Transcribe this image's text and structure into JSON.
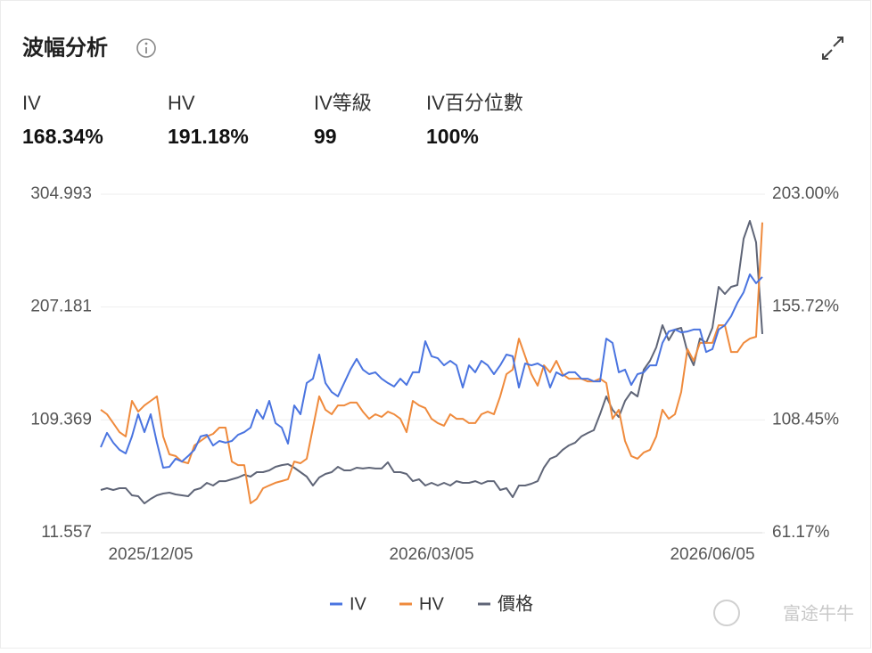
{
  "header": {
    "title": "波幅分析"
  },
  "stats": [
    {
      "label": "IV",
      "value": "168.34%"
    },
    {
      "label": "HV",
      "value": "191.18%"
    },
    {
      "label": "IV等級",
      "value": "99"
    },
    {
      "label": "IV百分位數",
      "value": "100%"
    }
  ],
  "watermark": "富途牛牛",
  "chart_data": {
    "type": "line",
    "categories": [
      null,
      null,
      null,
      null,
      null,
      null,
      null,
      null,
      "2025/12/05",
      null,
      null,
      null,
      null,
      null,
      null,
      null,
      null,
      null,
      null,
      null,
      null,
      null,
      null,
      null,
      null,
      null,
      null,
      null,
      null,
      null,
      null,
      null,
      null,
      null,
      null,
      null,
      null,
      null,
      null,
      null,
      null,
      null,
      null,
      null,
      null,
      null,
      null,
      null,
      null,
      null,
      null,
      null,
      null,
      "2026/03/05",
      null,
      null,
      null,
      null,
      null,
      null,
      null,
      null,
      null,
      null,
      null,
      null,
      null,
      null,
      null,
      null,
      null,
      null,
      null,
      null,
      null,
      null,
      null,
      null,
      null,
      null,
      null,
      null,
      null,
      null,
      null,
      null,
      null,
      null,
      null,
      null,
      null,
      null,
      null,
      null,
      null,
      null,
      null,
      null,
      "2026/06/05",
      null,
      null,
      null,
      null,
      null,
      null,
      null,
      null
    ],
    "series": [
      {
        "name": "IV",
        "color": "#4a74e0",
        "axis": "y2",
        "values": [
          97.0,
          103.0,
          98.9,
          95.9,
          94.4,
          101.5,
          110.8,
          103.3,
          110.8,
          98.9,
          88.4,
          88.8,
          92.2,
          91.0,
          93.3,
          95.9,
          101.5,
          102.2,
          97.7,
          99.6,
          98.9,
          99.6,
          102.2,
          103.3,
          105.2,
          112.7,
          108.9,
          116.4,
          107.1,
          105.2,
          98.5,
          114.5,
          110.8,
          123.9,
          125.7,
          135.8,
          123.9,
          120.1,
          118.3,
          123.9,
          129.5,
          134.0,
          129.5,
          127.6,
          128.4,
          125.7,
          123.9,
          122.4,
          125.7,
          123.1,
          128.4,
          128.4,
          141.4,
          135.1,
          134.3,
          131.3,
          133.2,
          131.3,
          122.0,
          131.3,
          128.4,
          133.2,
          131.3,
          127.6,
          131.3,
          135.8,
          135.1,
          122.0,
          132.1,
          131.3,
          132.1,
          130.6,
          122.0,
          128.4,
          126.9,
          128.4,
          128.4,
          125.7,
          125.7,
          124.6,
          124.6,
          142.5,
          140.7,
          128.4,
          129.5,
          123.1,
          127.6,
          128.4,
          131.3,
          131.3,
          140.7,
          145.5,
          146.3,
          145.1,
          145.5,
          146.3,
          146.3,
          136.9,
          138.1,
          146.3,
          148.1,
          151.9,
          157.5,
          161.9,
          169.4,
          165.7,
          168.34
        ]
      },
      {
        "name": "HV",
        "color": "#ef8a3c",
        "axis": "y2",
        "values": [
          112.7,
          110.8,
          107.1,
          103.3,
          101.5,
          116.4,
          111.9,
          114.5,
          116.4,
          118.3,
          101.5,
          94.0,
          93.3,
          91.0,
          90.3,
          97.7,
          99.6,
          101.5,
          102.6,
          105.2,
          105.2,
          91.0,
          89.5,
          89.5,
          73.5,
          75.4,
          79.8,
          81.0,
          82.1,
          82.8,
          83.6,
          91.0,
          90.3,
          92.2,
          105.2,
          118.3,
          112.7,
          110.8,
          114.5,
          114.5,
          115.7,
          115.7,
          111.9,
          108.9,
          110.8,
          109.7,
          111.9,
          110.8,
          108.9,
          103.3,
          116.4,
          114.5,
          113.4,
          108.9,
          107.1,
          106.0,
          110.8,
          108.9,
          108.9,
          107.1,
          107.1,
          110.8,
          111.9,
          110.8,
          118.3,
          127.6,
          129.5,
          142.5,
          135.1,
          127.6,
          122.8,
          131.3,
          128.4,
          133.2,
          127.6,
          125.7,
          125.7,
          125.7,
          124.6,
          124.6,
          125.7,
          123.9,
          108.9,
          112.7,
          99.6,
          93.3,
          92.2,
          94.8,
          95.9,
          101.5,
          112.7,
          108.9,
          110.8,
          120.1,
          138.1,
          133.2,
          140.7,
          140.7,
          140.7,
          148.1,
          148.1,
          136.9,
          136.9,
          140.7,
          142.5,
          143.3,
          191.18
        ]
      },
      {
        "name": "價格",
        "color": "#5f6577",
        "values": [
          48.6,
          50.2,
          48.6,
          50.2,
          50.2,
          44.0,
          43.2,
          37.0,
          40.9,
          44.0,
          45.5,
          46.3,
          44.8,
          44.0,
          43.2,
          48.6,
          50.2,
          54.8,
          52.5,
          56.3,
          56.3,
          57.9,
          59.4,
          61.8,
          60.2,
          64.1,
          64.1,
          65.6,
          68.7,
          70.2,
          71.0,
          67.9,
          64.1,
          60.2,
          52.5,
          59.4,
          62.5,
          64.1,
          68.7,
          65.6,
          65.6,
          67.9,
          67.2,
          67.9,
          67.2,
          67.2,
          72.6,
          64.1,
          64.1,
          62.5,
          56.3,
          57.9,
          52.5,
          54.8,
          52.5,
          54.8,
          52.5,
          56.3,
          54.8,
          54.8,
          56.3,
          54.0,
          56.3,
          56.3,
          48.6,
          50.2,
          42.4,
          52.5,
          52.5,
          54.0,
          56.3,
          67.9,
          75.7,
          78.0,
          83.4,
          87.2,
          89.6,
          95.0,
          98.0,
          100.4,
          114.3,
          129.7,
          118.1,
          111.9,
          125.8,
          133.6,
          129.7,
          152.9,
          160.6,
          172.2,
          191.5,
          178.4,
          187.6,
          189.2,
          168.3,
          156.7,
          179.9,
          176.0,
          189.2,
          224.7,
          218.5,
          224.7,
          226.2,
          266.4,
          281.8,
          263.3,
          183.8
        ]
      }
    ],
    "ylim": [
      11.557,
      304.993
    ],
    "yticks": [
      11.557,
      109.369,
      207.181,
      304.993
    ],
    "y2lim": [
      61.17,
      203
    ],
    "y2ticks": [
      {
        "value": 61.17,
        "label": "61.17%"
      },
      {
        "value": 108.45,
        "label": "108.45%"
      },
      {
        "value": 155.72,
        "label": "155.72%"
      },
      {
        "value": 203,
        "label": "203.00%"
      }
    ],
    "grid": true,
    "legend": "bottom"
  }
}
